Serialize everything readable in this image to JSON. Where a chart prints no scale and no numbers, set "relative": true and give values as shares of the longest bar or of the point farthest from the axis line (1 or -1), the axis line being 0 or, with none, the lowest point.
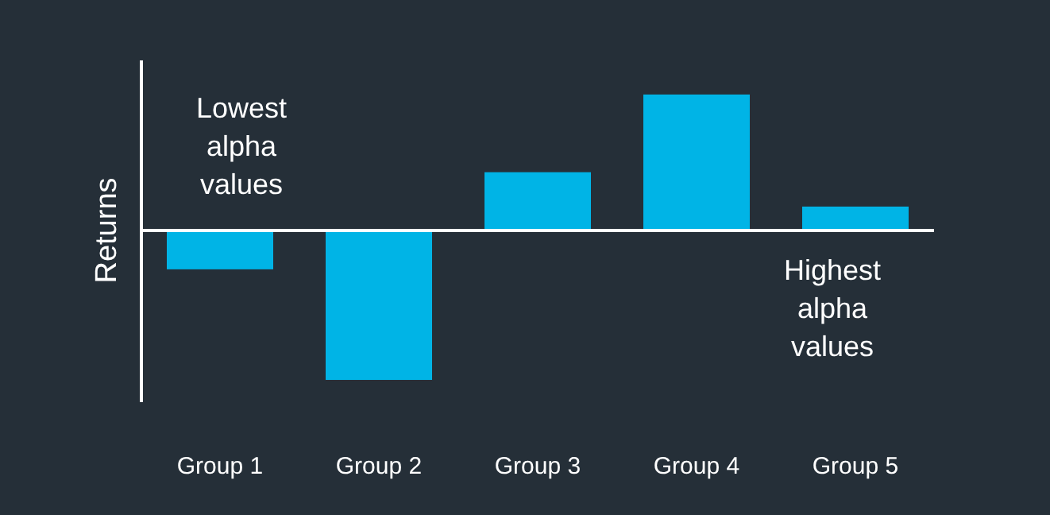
{
  "chart_data": {
    "type": "bar",
    "relative": true,
    "ylabel": "Returns",
    "categories": [
      "Group 1",
      "Group 2",
      "Group 3",
      "Group 4",
      "Group 5"
    ],
    "values": [
      -0.26,
      -1,
      0.39,
      0.91,
      0.16
    ],
    "color": "#00b4e6",
    "annotations": [
      "Lowest alpha values",
      "Highest alpha values"
    ]
  }
}
